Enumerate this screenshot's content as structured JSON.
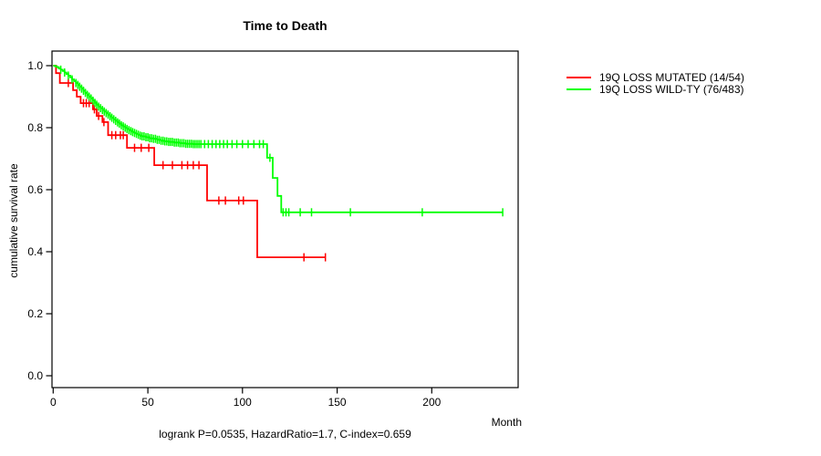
{
  "title": "Time to Death",
  "footer": "logrank P=0.0535, HazardRatio=1.7, C-index=0.659",
  "axes": {
    "x_label": "Month",
    "y_label": "cumulative survival rate",
    "x_ticks": [
      {
        "v": 0,
        "label": "0"
      },
      {
        "v": 50,
        "label": "50"
      },
      {
        "v": 100,
        "label": "100"
      },
      {
        "v": 150,
        "label": "150"
      },
      {
        "v": 200,
        "label": "200"
      }
    ],
    "y_ticks": [
      {
        "v": 0.0,
        "label": "0.0"
      },
      {
        "v": 0.2,
        "label": "0.2"
      },
      {
        "v": 0.4,
        "label": "0.4"
      },
      {
        "v": 0.6,
        "label": "0.6"
      },
      {
        "v": 0.8,
        "label": "0.8"
      },
      {
        "v": 1.0,
        "label": "1.0"
      }
    ]
  },
  "chart_data": {
    "type": "line",
    "subtype": "kaplan-meier-step",
    "title": "Time to Death",
    "xlabel": "Month",
    "ylabel": "cumulative survival rate",
    "xlim": [
      0,
      245
    ],
    "ylim": [
      0.0,
      1.0
    ],
    "grid": false,
    "legend_position": "right-outside",
    "annotation": "logrank P=0.0535, HazardRatio=1.7, C-index=0.659",
    "series": [
      {
        "name": "19Q LOSS MUTATED (14/54)",
        "color": "#ff0000",
        "steps": [
          [
            0,
            1.0
          ],
          [
            1.5,
            0.976
          ],
          [
            3.5,
            0.944
          ],
          [
            10.5,
            0.921
          ],
          [
            12.5,
            0.9
          ],
          [
            14.5,
            0.879
          ],
          [
            21,
            0.859
          ],
          [
            23,
            0.838
          ],
          [
            26,
            0.818
          ],
          [
            29,
            0.776
          ],
          [
            39,
            0.735
          ],
          [
            53.4,
            0.679
          ],
          [
            81.3,
            0.565
          ],
          [
            107.8,
            0.382
          ]
        ],
        "end_time": 143.8,
        "censor_times": [
          8,
          16,
          17.5,
          19,
          21.8,
          24,
          26.8,
          31,
          33,
          35.5,
          37,
          43,
          46.5,
          50.5,
          58,
          63,
          68,
          71,
          74,
          77,
          87.5,
          91,
          98,
          100.5,
          132.5,
          143.8
        ]
      },
      {
        "name": "19Q LOSS WILD-TY (76/483)",
        "color": "#00ff00",
        "steps": [
          [
            0,
            1.0
          ],
          [
            1,
            0.998
          ],
          [
            2,
            0.995
          ],
          [
            3,
            0.991
          ],
          [
            4,
            0.987
          ],
          [
            5,
            0.983
          ],
          [
            6,
            0.978
          ],
          [
            7,
            0.973
          ],
          [
            8,
            0.968
          ],
          [
            9,
            0.962
          ],
          [
            10,
            0.956
          ],
          [
            11,
            0.95
          ],
          [
            12,
            0.944
          ],
          [
            13,
            0.938
          ],
          [
            14,
            0.932
          ],
          [
            15,
            0.926
          ],
          [
            16,
            0.919
          ],
          [
            17,
            0.912
          ],
          [
            18,
            0.906
          ],
          [
            19,
            0.9
          ],
          [
            20,
            0.894
          ],
          [
            21,
            0.887
          ],
          [
            22,
            0.88
          ],
          [
            23,
            0.874
          ],
          [
            24,
            0.868
          ],
          [
            25,
            0.863
          ],
          [
            26,
            0.857
          ],
          [
            27,
            0.852
          ],
          [
            28,
            0.847
          ],
          [
            29,
            0.842
          ],
          [
            30,
            0.837
          ],
          [
            31,
            0.832
          ],
          [
            32,
            0.827
          ],
          [
            33,
            0.822
          ],
          [
            34,
            0.817
          ],
          [
            35,
            0.813
          ],
          [
            36,
            0.808
          ],
          [
            37,
            0.804
          ],
          [
            38,
            0.8
          ],
          [
            39,
            0.796
          ],
          [
            40,
            0.792
          ],
          [
            41,
            0.789
          ],
          [
            42,
            0.786
          ],
          [
            43,
            0.783
          ],
          [
            44,
            0.78
          ],
          [
            45,
            0.777
          ],
          [
            46,
            0.774
          ],
          [
            47,
            0.772
          ],
          [
            49,
            0.769
          ],
          [
            51,
            0.766
          ],
          [
            53,
            0.764
          ],
          [
            55,
            0.761
          ],
          [
            57,
            0.758
          ],
          [
            59,
            0.756
          ],
          [
            61,
            0.754
          ],
          [
            64,
            0.752
          ],
          [
            67,
            0.75
          ],
          [
            70,
            0.748
          ],
          [
            74,
            0.747
          ],
          [
            113,
            0.703
          ],
          [
            116,
            0.638
          ],
          [
            118.5,
            0.58
          ],
          [
            120.5,
            0.527
          ]
        ],
        "end_time": 237.5,
        "censor_times": [
          4,
          6,
          8,
          10,
          12,
          13,
          14,
          15,
          16,
          17,
          18,
          19,
          20,
          21,
          22,
          23,
          24,
          25,
          26,
          27,
          28,
          29,
          30,
          31,
          32,
          33,
          34,
          35,
          36,
          37,
          38,
          39,
          40,
          41,
          42,
          43,
          44,
          45,
          46,
          47,
          48,
          49,
          50,
          51,
          52,
          53,
          54,
          55,
          56,
          57,
          58,
          59,
          60,
          61,
          62,
          63,
          64,
          65,
          66,
          67,
          68,
          69,
          70,
          71,
          72,
          73,
          74,
          75,
          76,
          77,
          78,
          80,
          82,
          84,
          86,
          88,
          90,
          92,
          94.5,
          97,
          100,
          103,
          106,
          109,
          111,
          114.5,
          121.5,
          123,
          124.5,
          130.5,
          136.5,
          157,
          195,
          237.5
        ]
      }
    ]
  }
}
